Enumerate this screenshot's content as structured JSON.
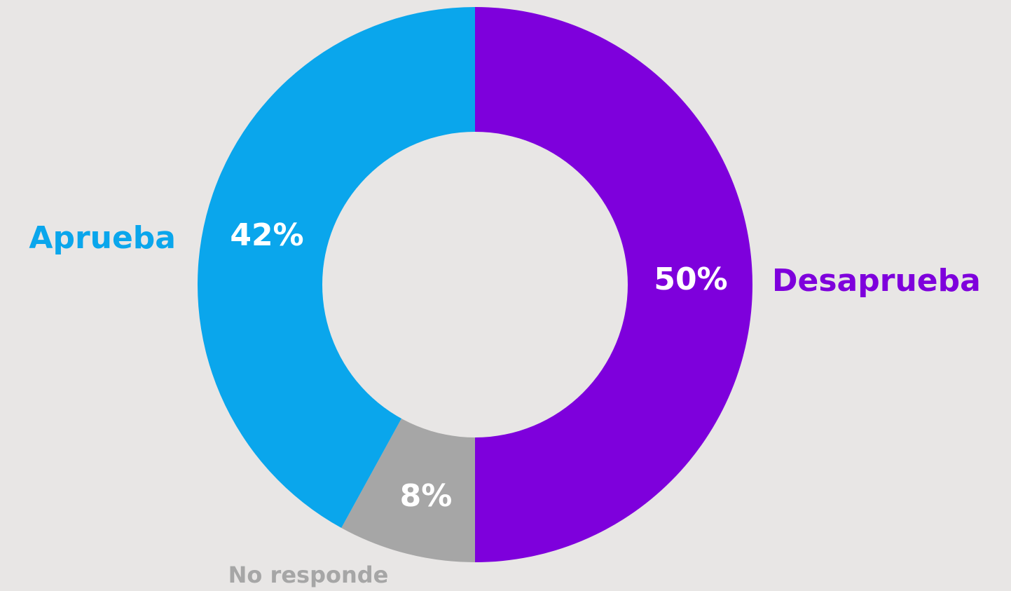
{
  "chart_data": {
    "type": "pie",
    "donut": true,
    "slices": [
      {
        "label": "Desaprueba",
        "value": 50,
        "value_label": "50%",
        "color": "#7e00dc"
      },
      {
        "label": "No responde",
        "value": 8,
        "value_label": "8%",
        "color": "#a6a6a6"
      },
      {
        "label": "Aprueba",
        "value": 42,
        "value_label": "42%",
        "color": "#0aa6ec"
      }
    ],
    "start_angle_deg": 0,
    "direction": "clockwise",
    "background": "#e8e6e5",
    "center_color": "#e8e6e5",
    "value_label_color": "#ffffff"
  }
}
